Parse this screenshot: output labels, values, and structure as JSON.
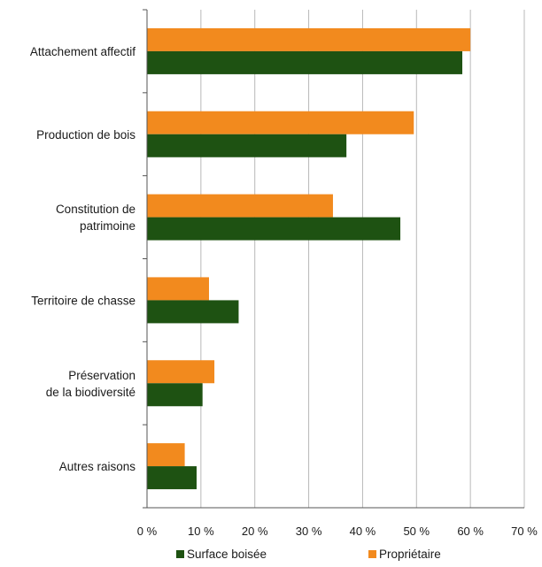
{
  "chart_data": {
    "type": "bar",
    "orientation": "horizontal",
    "categories": [
      [
        "Attachement affectif"
      ],
      [
        "Production de bois"
      ],
      [
        "Constitution de",
        "patrimoine"
      ],
      [
        "Territoire de chasse"
      ],
      [
        "Préservation",
        "de la biodiversité"
      ],
      [
        "Autres raisons"
      ]
    ],
    "series": [
      {
        "name": "Propriétaire",
        "color": "#f28a1e",
        "values": [
          60,
          49.5,
          34.5,
          11.5,
          12.5,
          7
        ]
      },
      {
        "name": "Surface boisée",
        "color": "#1e5212",
        "values": [
          58.5,
          37,
          47,
          17,
          10.3,
          9.2
        ]
      }
    ],
    "xlim": [
      0,
      70
    ],
    "xticks": [
      0,
      10,
      20,
      30,
      40,
      50,
      60,
      70
    ],
    "xtick_labels": [
      "0 %",
      "10 %",
      "20 %",
      "30 %",
      "40 %",
      "50 %",
      "60 %",
      "70 %"
    ],
    "grid": true,
    "legend": {
      "position": "bottom",
      "items": [
        {
          "label": "Surface boisée",
          "color": "#1e5212"
        },
        {
          "label": "Propriétaire",
          "color": "#f28a1e"
        }
      ]
    },
    "title": "",
    "xlabel": "",
    "ylabel": ""
  }
}
